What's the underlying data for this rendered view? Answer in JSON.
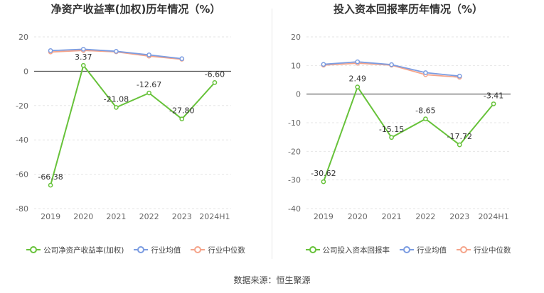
{
  "charts": [
    {
      "title": "净资产收益率(加权)历年情况（%）",
      "legend": [
        {
          "label": "公司净资产收益率(加权)",
          "color": "#67c23a"
        },
        {
          "label": "行业均值",
          "color": "#7b9ce1"
        },
        {
          "label": "行业中位数",
          "color": "#f5a48a"
        }
      ]
    },
    {
      "title": "投入资本回报率历年情况（%）",
      "legend": [
        {
          "label": "公司投入资本回报率",
          "color": "#67c23a"
        },
        {
          "label": "行业均值",
          "color": "#7b9ce1"
        },
        {
          "label": "行业中位数",
          "color": "#f5a48a"
        }
      ]
    }
  ],
  "chart_data": [
    {
      "type": "line",
      "title": "净资产收益率(加权)历年情况（%）",
      "categories": [
        "2019",
        "2020",
        "2021",
        "2022",
        "2023",
        "2024H1"
      ],
      "ylim": [
        -80,
        20
      ],
      "yticks": [
        "20",
        "0",
        "-20",
        "-40",
        "-60",
        "-80"
      ],
      "grid": true,
      "legend_position": "bottom",
      "series": [
        {
          "name": "公司净资产收益率(加权)",
          "color": "#67c23a",
          "values": [
            -66.38,
            3.37,
            -21.08,
            -12.67,
            -27.8,
            -6.6
          ],
          "labels": [
            "-66.38",
            "3.37",
            "-21.08",
            "-12.67",
            "-27.80",
            "-6.60"
          ]
        },
        {
          "name": "行业均值",
          "color": "#7b9ce1",
          "values": [
            12.0,
            12.8,
            11.6,
            9.5,
            7.3,
            null
          ]
        },
        {
          "name": "行业中位数",
          "color": "#f5a48a",
          "values": [
            11.2,
            12.1,
            11.3,
            8.8,
            7.0,
            null
          ]
        }
      ]
    },
    {
      "type": "line",
      "title": "投入资本回报率历年情况（%）",
      "categories": [
        "2019",
        "2020",
        "2021",
        "2022",
        "2023",
        "2024H1"
      ],
      "ylim": [
        -40,
        20
      ],
      "yticks": [
        "20",
        "10",
        "0",
        "-10",
        "-20",
        "-30",
        "-40"
      ],
      "grid": true,
      "legend_position": "bottom",
      "series": [
        {
          "name": "公司投入资本回报率",
          "color": "#67c23a",
          "values": [
            -30.62,
            2.49,
            -15.15,
            -8.65,
            -17.72,
            -3.41
          ],
          "labels": [
            "-30.62",
            "2.49",
            "-15.15",
            "-8.65",
            "-17.72",
            "-3.41"
          ]
        },
        {
          "name": "行业均值",
          "color": "#7b9ce1",
          "values": [
            10.4,
            11.3,
            10.3,
            7.5,
            6.3,
            null
          ]
        },
        {
          "name": "行业中位数",
          "color": "#f5a48a",
          "values": [
            10.1,
            10.8,
            10.1,
            6.8,
            5.9,
            null
          ]
        }
      ]
    }
  ],
  "source": "数据来源：恒生聚源"
}
